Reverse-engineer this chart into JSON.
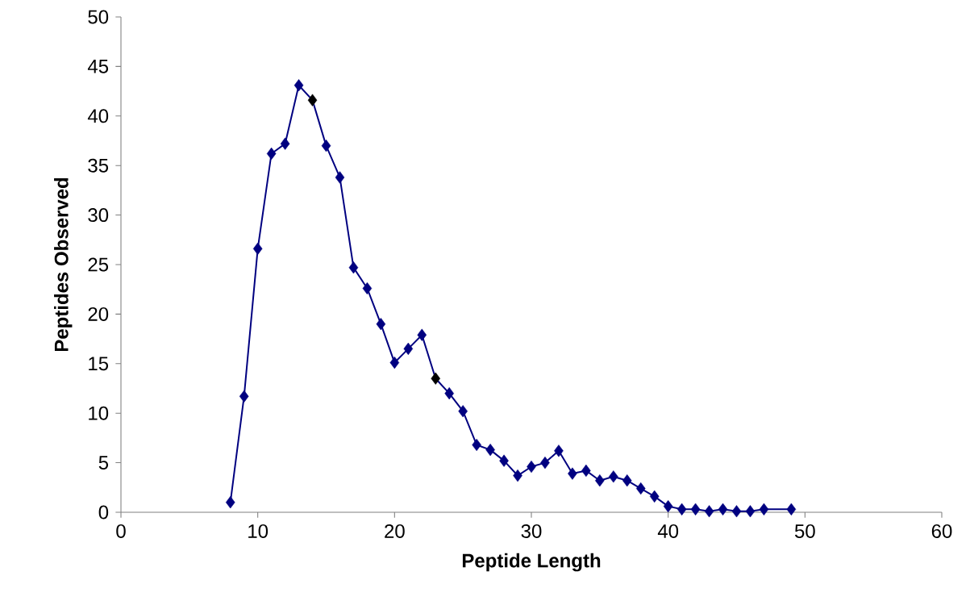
{
  "chart_data": {
    "type": "line",
    "xlabel": "Peptide Length",
    "ylabel": "Peptides Observed",
    "x": [
      8,
      9,
      10,
      11,
      12,
      13,
      14,
      15,
      16,
      17,
      18,
      19,
      20,
      21,
      22,
      23,
      24,
      25,
      26,
      27,
      28,
      29,
      30,
      31,
      32,
      33,
      34,
      35,
      36,
      37,
      38,
      39,
      40,
      41,
      42,
      43,
      44,
      45,
      46,
      47,
      49
    ],
    "series": [
      {
        "color": "#000080",
        "values": [
          1.0,
          11.7,
          26.6,
          36.2,
          37.2,
          43.1,
          41.6,
          37.0,
          33.8,
          24.7,
          22.6,
          19.0,
          15.1,
          16.5,
          17.9,
          13.5,
          12.0,
          10.2,
          6.8,
          6.3,
          5.2,
          3.7,
          4.6,
          5.0,
          6.2,
          3.9,
          4.2,
          3.2,
          3.6,
          3.2,
          2.4,
          1.6,
          0.6,
          0.3,
          0.3,
          0.1,
          0.3,
          0.1,
          0.1,
          0.3,
          0.3
        ],
        "colors": [
          "#000080",
          "#000080",
          "#000080",
          "#000080",
          "#000080",
          "#000080",
          "#000000",
          "#000080",
          "#000080",
          "#000080",
          "#000080",
          "#000080",
          "#000080",
          "#000080",
          "#000080",
          "#000000",
          "#000080",
          "#000080",
          "#000080",
          "#000080",
          "#000080",
          "#000080",
          "#000080",
          "#000080",
          "#000080",
          "#000080",
          "#000080",
          "#000080",
          "#000080",
          "#000080",
          "#000080",
          "#000080",
          "#000080",
          "#000080",
          "#000080",
          "#000080",
          "#000080",
          "#000080",
          "#000080",
          "#000080",
          "#000080"
        ]
      }
    ],
    "xlim": [
      0,
      60
    ],
    "xticks": [
      0,
      10,
      20,
      30,
      40,
      50,
      60
    ],
    "ylim": [
      0,
      50
    ],
    "yticks": [
      0,
      5,
      10,
      15,
      20,
      25,
      30,
      35,
      40,
      45,
      50
    ],
    "marker": "diamond",
    "grid": false
  }
}
